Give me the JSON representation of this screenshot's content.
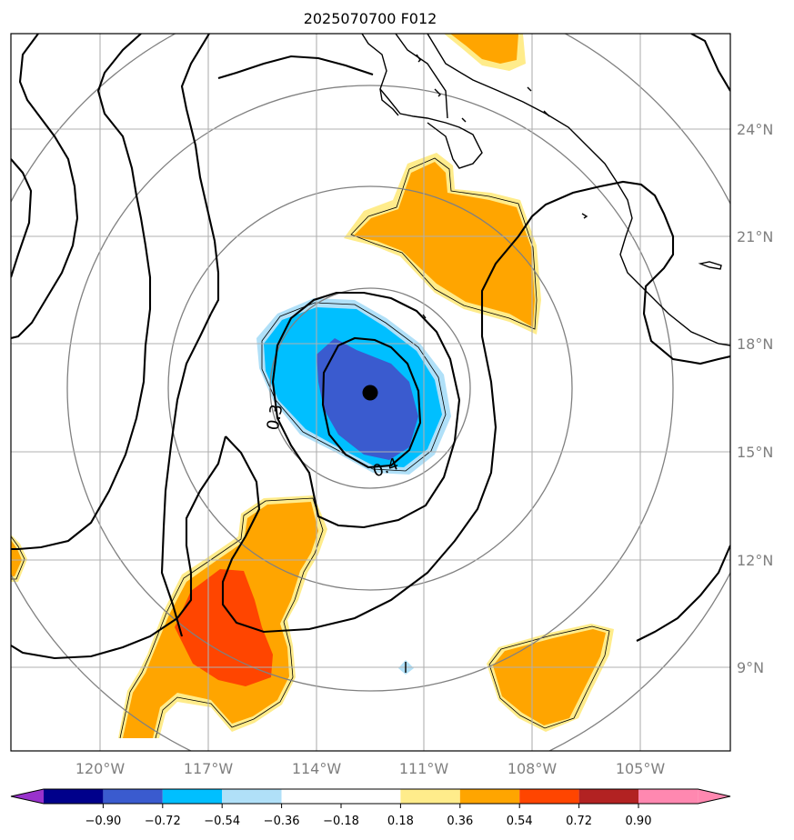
{
  "title": "2025070700 F012",
  "lat_labels": [
    "24°N",
    "21°N",
    "18°N",
    "15°N",
    "12°N",
    "9°N"
  ],
  "lon_labels": [
    "120°W",
    "117°W",
    "114°W",
    "111°W",
    "108°W",
    "105°W"
  ],
  "contour_labels": [
    "0.3",
    "0.4"
  ],
  "colorbar": {
    "ticks": [
      "−0.90",
      "−0.72",
      "−0.54",
      "−0.36",
      "−0.18",
      "0.18",
      "0.36",
      "0.54",
      "0.72",
      "0.90"
    ],
    "colors": [
      "#9932cc",
      "#00008b",
      "#3a5bcf",
      "#00bfff",
      "#b0e0f8",
      "#ffffff",
      "#ffec8b",
      "#ffa500",
      "#ff4500",
      "#b22222",
      "#ff88b0"
    ]
  },
  "fill_colors": {
    "orange": "#ffa500",
    "yellow": "#ffec8b",
    "red": "#ff4500",
    "cyan": "#00bfff",
    "lightblue": "#b0e0f8",
    "blue": "#3a5bcf"
  }
}
